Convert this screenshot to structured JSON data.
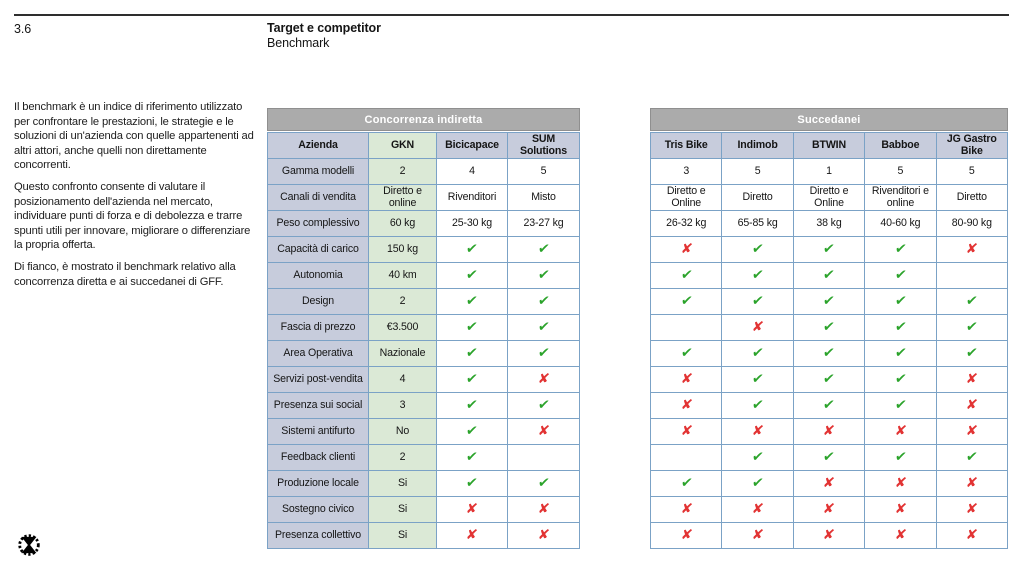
{
  "page": {
    "section_number": "3.6",
    "title": "Target e competitor",
    "subtitle": "Benchmark",
    "paragraphs": [
      "Il benchmark è un indice di riferimento utilizzato per confrontare le prestazioni, le strategie e le soluzioni di un'azienda con quelle appartenenti ad altri attori, anche quelli non direttamente concorrenti.",
      "Questo confronto consente di valutare il posizionamento dell'azienda nel mercato, individuare punti di forza e di debolezza e trarre spunti utili per innovare, migliorare o differenziare la propria offerta.",
      "Di fianco, è mostrato il benchmark relativo alla concorrenza diretta e ai succedanei di GFF."
    ],
    "logo_icon": "gear-ring-hourglass-logo"
  },
  "colors": {
    "header_band": "#ababab",
    "label_cell_bg": "#c7ccdc",
    "highlight_column_bg": "#dbe9d6",
    "grid_border": "#7ba2c6",
    "check": "#2ba32b",
    "cross": "#e23333"
  },
  "marks": {
    "check_glyph": "✓",
    "cross_glyph": "✗"
  },
  "tables": [
    {
      "title": "Concorrenza indiretta",
      "has_labels": true,
      "highlight_col": 1,
      "columns": [
        "Azienda",
        "GKN",
        "Bicicapace",
        "SUM Solutions"
      ],
      "rows": [
        {
          "label": "Gamma modelli",
          "values": [
            "2",
            "4",
            "5"
          ]
        },
        {
          "label": "Canali di vendita",
          "values": [
            "Diretto e online",
            "Rivenditori",
            "Misto"
          ]
        },
        {
          "label": "Peso complessivo",
          "values": [
            "60 kg",
            "25-30 kg",
            "23-27 kg"
          ]
        },
        {
          "label": "Capacità di carico",
          "values": [
            "150 kg",
            "✓",
            "✓"
          ]
        },
        {
          "label": "Autonomia",
          "values": [
            "40 km",
            "✓",
            "✓"
          ]
        },
        {
          "label": "Design",
          "values": [
            "2",
            "✓",
            "✓"
          ]
        },
        {
          "label": "Fascia di prezzo",
          "values": [
            "€3.500",
            "✓",
            "✓"
          ]
        },
        {
          "label": "Area Operativa",
          "values": [
            "Nazionale",
            "✓",
            "✓"
          ]
        },
        {
          "label": "Servizi post-vendita",
          "values": [
            "4",
            "✓",
            "✗"
          ]
        },
        {
          "label": "Presenza sui social",
          "values": [
            "3",
            "✓",
            "✓"
          ]
        },
        {
          "label": "Sistemi antifurto",
          "values": [
            "No",
            "✓",
            "✗"
          ]
        },
        {
          "label": "Feedback clienti",
          "values": [
            "2",
            "✓",
            ""
          ]
        },
        {
          "label": "Produzione locale",
          "values": [
            "Si",
            "✓",
            "✓"
          ]
        },
        {
          "label": "Sostegno civico",
          "values": [
            "Si",
            "✗",
            "✗"
          ]
        },
        {
          "label": "Presenza collettivo",
          "values": [
            "Si",
            "✗",
            "✗"
          ]
        }
      ]
    },
    {
      "title": "Succedanei",
      "has_labels": false,
      "highlight_col": null,
      "columns": [
        "Tris Bike",
        "Indimob",
        "BTWIN",
        "Babboe",
        "JG Gastro Bike"
      ],
      "rows": [
        {
          "values": [
            "3",
            "5",
            "1",
            "5",
            "5"
          ]
        },
        {
          "values": [
            "Diretto e Online",
            "Diretto",
            "Diretto e Online",
            "Rivenditori e online",
            "Diretto"
          ]
        },
        {
          "values": [
            "26-32 kg",
            "65-85 kg",
            "38 kg",
            "40-60 kg",
            "80-90 kg"
          ]
        },
        {
          "values": [
            "✗",
            "✓",
            "✓",
            "✓",
            "✗"
          ]
        },
        {
          "values": [
            "✓",
            "✓",
            "✓",
            "✓",
            ""
          ]
        },
        {
          "values": [
            "✓",
            "✓",
            "✓",
            "✓",
            "✓"
          ]
        },
        {
          "values": [
            "",
            "✗",
            "✓",
            "✓",
            "✓"
          ]
        },
        {
          "values": [
            "✓",
            "✓",
            "✓",
            "✓",
            "✓"
          ]
        },
        {
          "values": [
            "✗",
            "✓",
            "✓",
            "✓",
            "✗"
          ]
        },
        {
          "values": [
            "✗",
            "✓",
            "✓",
            "✓",
            "✗"
          ]
        },
        {
          "values": [
            "✗",
            "✗",
            "✗",
            "✗",
            "✗"
          ]
        },
        {
          "values": [
            "",
            "✓",
            "✓",
            "✓",
            "✓"
          ]
        },
        {
          "values": [
            "✓",
            "✓",
            "✗",
            "✗",
            "✗"
          ]
        },
        {
          "values": [
            "✗",
            "✗",
            "✗",
            "✗",
            "✗"
          ]
        },
        {
          "values": [
            "✗",
            "✗",
            "✗",
            "✗",
            "✗"
          ]
        }
      ]
    }
  ]
}
